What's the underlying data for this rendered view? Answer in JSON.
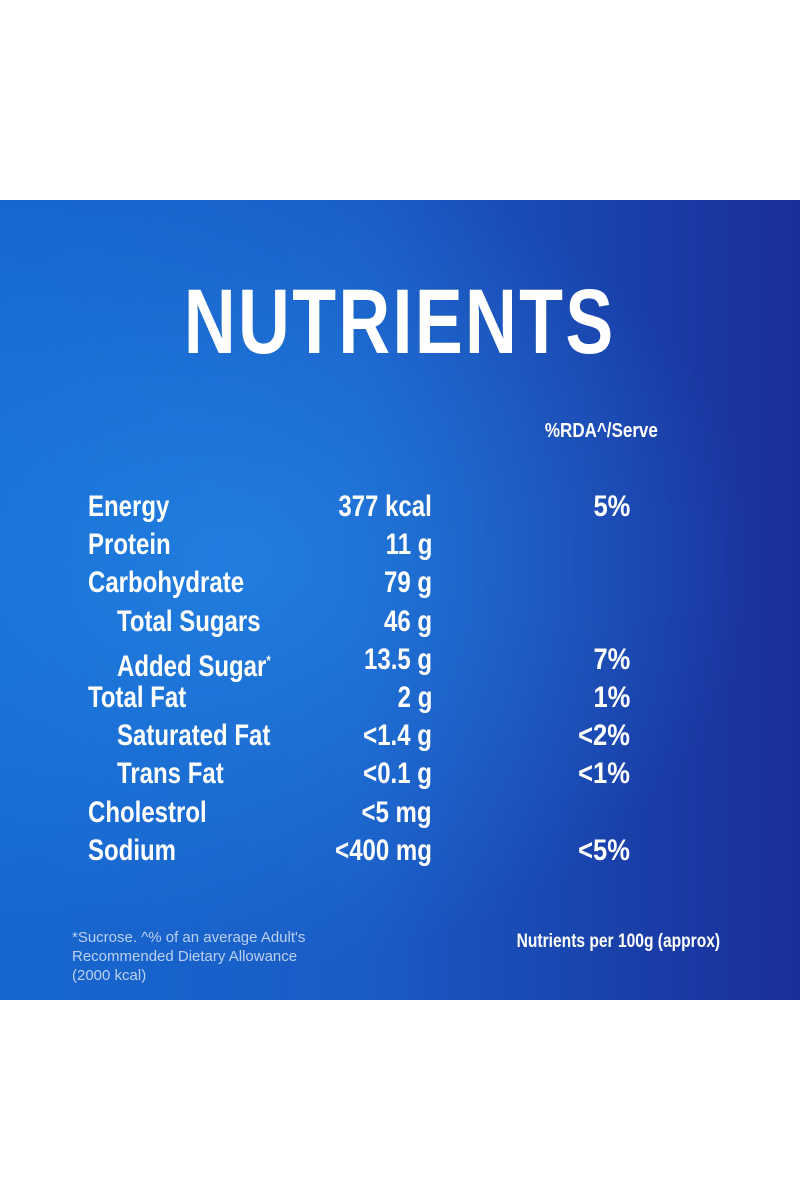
{
  "title": "NUTRIENTS",
  "rda_header": "%RDA^/Serve",
  "rows": [
    {
      "name": "Energy",
      "amount": "377 kcal",
      "rda": "5%"
    },
    {
      "name": "Protein",
      "amount": "11 g"
    },
    {
      "name": "Carbohydrate",
      "amount": "79 g"
    },
    {
      "name": "Total Sugars",
      "amount": "46 g",
      "indent": true
    },
    {
      "name": "Added Sugar",
      "mark": "*",
      "amount": "13.5 g",
      "rda": "7%",
      "indent": true
    },
    {
      "name": "Total Fat",
      "amount": "2 g",
      "rda": "1%"
    },
    {
      "name": "Saturated Fat",
      "amount": "<1.4 g",
      "rda": "<2%",
      "indent": true
    },
    {
      "name": "Trans Fat",
      "amount": "<0.1 g",
      "rda": "<1%",
      "indent": true
    },
    {
      "name": "Cholestrol",
      "amount": "<5 mg"
    },
    {
      "name": "Sodium",
      "amount": "<400 mg",
      "rda": "<5%"
    }
  ],
  "footnote": [
    "*Sucrose. ^% of an average Adult's",
    "Recommended Dietary Allowance",
    "(2000 kcal)"
  ],
  "basis": "Nutrients per 100g (approx)"
}
